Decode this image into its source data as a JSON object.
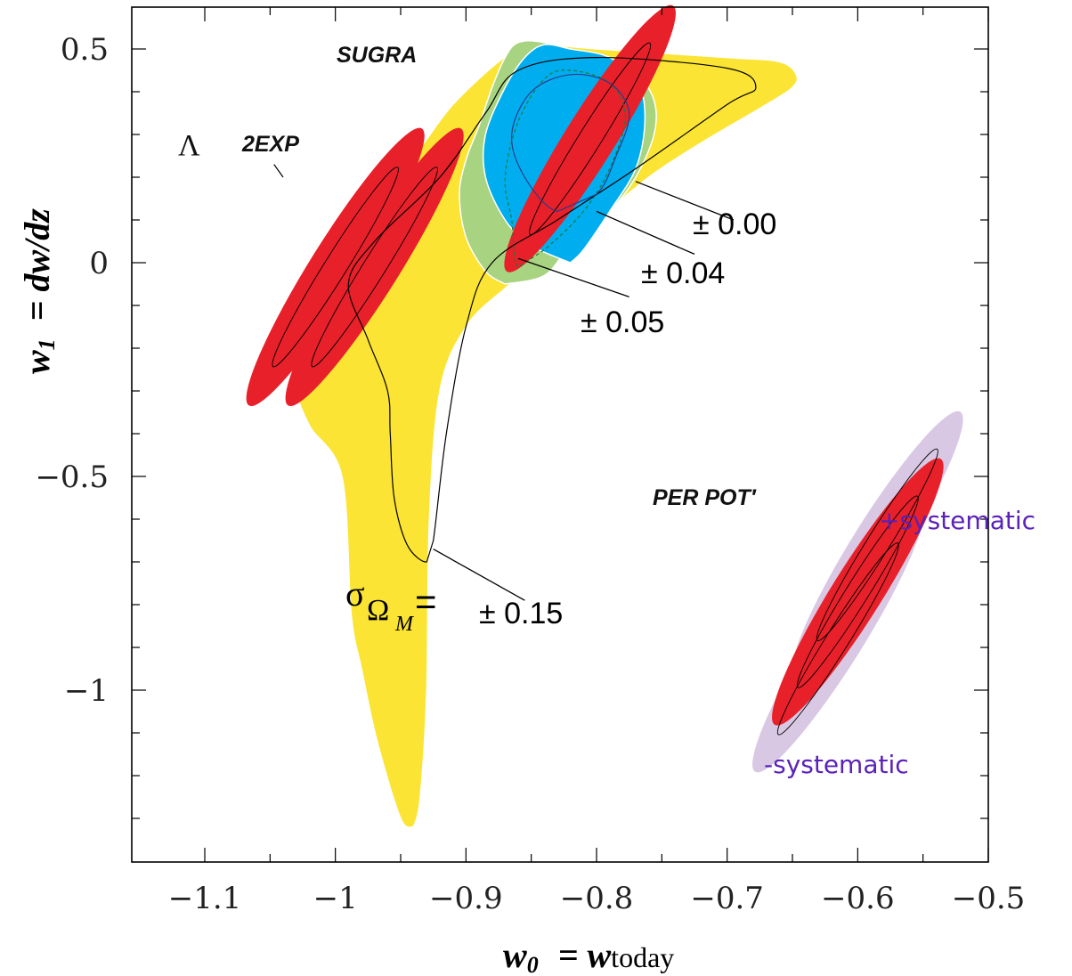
{
  "chart_data": {
    "type": "contour",
    "xlabel": {
      "main": "w",
      "sub": "0",
      "eq": "= w",
      "tail": "today"
    },
    "ylabel": {
      "main": "w",
      "sub": "1",
      "eq": "= dw/dz"
    },
    "xlim": [
      -1.1,
      -0.5
    ],
    "ylim": [
      -1.4,
      0.5
    ],
    "x_ticks": [
      -1.1,
      -1.0,
      -0.9,
      -0.8,
      -0.7,
      -0.6,
      -0.5
    ],
    "x_tick_labels": [
      "−1.1",
      "−1",
      "−0.9",
      "−0.8",
      "−0.7",
      "−0.6",
      "−0.5"
    ],
    "y_ticks": [
      0.5,
      0,
      -0.5,
      -1
    ],
    "y_tick_labels": [
      "0.5",
      "0",
      "−0.5",
      "−1"
    ],
    "regions": [
      {
        "name": "sigma_OmegaM_0.15",
        "color": "#fbe433",
        "points": [
          [
            -0.94,
            -1.32
          ],
          [
            -0.95,
            -1.3
          ],
          [
            -0.968,
            -1.12
          ],
          [
            -0.98,
            -0.95
          ],
          [
            -0.988,
            -0.82
          ],
          [
            -0.995,
            -0.5
          ],
          [
            -1.02,
            -0.38
          ],
          [
            -1.03,
            -0.28
          ],
          [
            -1.026,
            -0.1
          ],
          [
            -1.01,
            0.0
          ],
          [
            -0.99,
            0.1
          ],
          [
            -0.96,
            0.19
          ],
          [
            -0.935,
            0.27
          ],
          [
            -0.91,
            0.37
          ],
          [
            -0.875,
            0.47
          ],
          [
            -0.855,
            0.5
          ],
          [
            -0.84,
            0.51
          ],
          [
            -0.8,
            0.5
          ],
          [
            -0.7,
            0.48
          ],
          [
            -0.66,
            0.47
          ],
          [
            -0.647,
            0.44
          ],
          [
            -0.65,
            0.41
          ],
          [
            -0.67,
            0.37
          ],
          [
            -0.72,
            0.28
          ],
          [
            -0.76,
            0.2
          ],
          [
            -0.8,
            0.1
          ],
          [
            -0.84,
            0.01
          ],
          [
            -0.87,
            -0.06
          ],
          [
            -0.9,
            -0.15
          ],
          [
            -0.92,
            -0.3
          ],
          [
            -0.928,
            -0.6
          ],
          [
            -0.93,
            -1.0
          ],
          [
            -0.935,
            -1.25
          ],
          [
            -0.94,
            -1.32
          ]
        ]
      },
      {
        "name": "sigma_OmegaM_0.05",
        "color": "#a8d380",
        "points": [
          [
            -0.87,
            -0.05
          ],
          [
            -0.885,
            -0.02
          ],
          [
            -0.9,
            0.06
          ],
          [
            -0.905,
            0.16
          ],
          [
            -0.9,
            0.24
          ],
          [
            -0.89,
            0.32
          ],
          [
            -0.88,
            0.41
          ],
          [
            -0.87,
            0.48
          ],
          [
            -0.86,
            0.515
          ],
          [
            -0.84,
            0.515
          ],
          [
            -0.8,
            0.48
          ],
          [
            -0.77,
            0.44
          ],
          [
            -0.756,
            0.38
          ],
          [
            -0.756,
            0.3
          ],
          [
            -0.77,
            0.2
          ],
          [
            -0.79,
            0.12
          ],
          [
            -0.82,
            0.04
          ],
          [
            -0.84,
            -0.03
          ],
          [
            -0.87,
            -0.05
          ]
        ]
      },
      {
        "name": "sigma_OmegaM_0.04",
        "color": "#00aeef",
        "points": [
          [
            -0.82,
            0.0
          ],
          [
            -0.85,
            0.04
          ],
          [
            -0.87,
            0.1
          ],
          [
            -0.885,
            0.2
          ],
          [
            -0.885,
            0.3
          ],
          [
            -0.87,
            0.41
          ],
          [
            -0.855,
            0.48
          ],
          [
            -0.84,
            0.51
          ],
          [
            -0.82,
            0.5
          ],
          [
            -0.79,
            0.48
          ],
          [
            -0.768,
            0.42
          ],
          [
            -0.763,
            0.33
          ],
          [
            -0.77,
            0.22
          ],
          [
            -0.79,
            0.12
          ],
          [
            -0.81,
            0.03
          ],
          [
            -0.82,
            0.0
          ]
        ]
      },
      {
        "name": "LCDM",
        "color": "#e8202a",
        "center": [
          -1.0,
          -0.01
        ],
        "angle": -58,
        "rx": 0.125,
        "ry": 0.012
      },
      {
        "name": "2EXP",
        "color": "#e8202a",
        "center": [
          -0.97,
          -0.01
        ],
        "angle": -58,
        "rx": 0.125,
        "ry": 0.012
      },
      {
        "name": "SUGRA",
        "color": "#e8202a",
        "center": [
          -0.805,
          0.29
        ],
        "angle": -58,
        "rx": 0.12,
        "ry": 0.012
      },
      {
        "name": "PERPOT_plus_systematic",
        "color": "#d8c8e4",
        "center": [
          -0.585,
          -0.66
        ],
        "angle": -58,
        "rx": 0.12,
        "ry": 0.012
      },
      {
        "name": "PERPOT_minus_systematic",
        "color": "#d8c8e4",
        "center": [
          -0.615,
          -0.88
        ],
        "angle": -58,
        "rx": 0.12,
        "ry": 0.012
      },
      {
        "name": "PERPOT",
        "color": "#e8202a",
        "center": [
          -0.6,
          -0.77
        ],
        "angle": -58,
        "rx": 0.12,
        "ry": 0.012
      }
    ],
    "annotations": {
      "sugra": "SUGRA",
      "lambda": "Λ",
      "twoexp": "2EXP",
      "perpot": "PER POT′",
      "plus_systematic": "+systematic",
      "minus_systematic": "-systematic",
      "sigma_symbol": "σ",
      "sigma_sub": "Ω",
      "sigma_subsub": "M",
      "sigma_eq": "=",
      "sigma_val": "± 0.15",
      "err_000": "± 0.00",
      "err_004": "± 0.04",
      "err_005": "± 0.05"
    }
  }
}
